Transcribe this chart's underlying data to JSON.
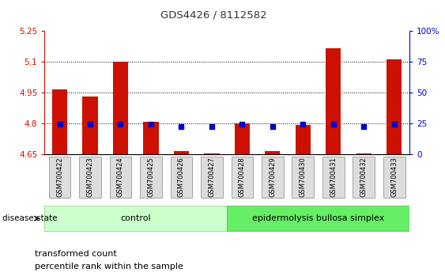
{
  "title": "GDS4426 / 8112582",
  "samples": [
    "GSM700422",
    "GSM700423",
    "GSM700424",
    "GSM700425",
    "GSM700426",
    "GSM700427",
    "GSM700428",
    "GSM700429",
    "GSM700430",
    "GSM700431",
    "GSM700432",
    "GSM700433"
  ],
  "transformed_count": [
    4.965,
    4.93,
    5.1,
    4.805,
    4.665,
    4.651,
    4.8,
    4.665,
    4.79,
    5.165,
    4.651,
    5.11
  ],
  "percentile_rank": [
    24,
    24,
    24,
    24,
    22,
    22,
    24,
    22,
    24,
    24,
    22,
    24
  ],
  "ylim_left": [
    4.65,
    5.25
  ],
  "ylim_right": [
    0,
    100
  ],
  "yticks_left": [
    4.65,
    4.8,
    4.95,
    5.1,
    5.25
  ],
  "yticks_right": [
    0,
    25,
    50,
    75,
    100
  ],
  "ytick_labels_left": [
    "4.65",
    "4.8",
    "4.95",
    "5.1",
    "5.25"
  ],
  "ytick_labels_right": [
    "0",
    "25",
    "50",
    "75",
    "100%"
  ],
  "grid_yticks": [
    4.8,
    4.95,
    5.1
  ],
  "bar_color": "#cc1100",
  "dot_color": "#0000cc",
  "bar_width": 0.5,
  "dot_size": 18,
  "baseline": 4.65,
  "control_samples": 6,
  "control_label": "control",
  "disease_label": "epidermolysis bullosa simplex",
  "disease_state_label": "disease state",
  "legend_items": [
    "transformed count",
    "percentile rank within the sample"
  ],
  "control_color": "#ccffcc",
  "disease_color": "#66ee66",
  "title_color": "#333333",
  "left_axis_color": "#cc1100",
  "right_axis_color": "#0000cc",
  "fig_width": 5.63,
  "fig_height": 3.54,
  "fig_dpi": 100
}
